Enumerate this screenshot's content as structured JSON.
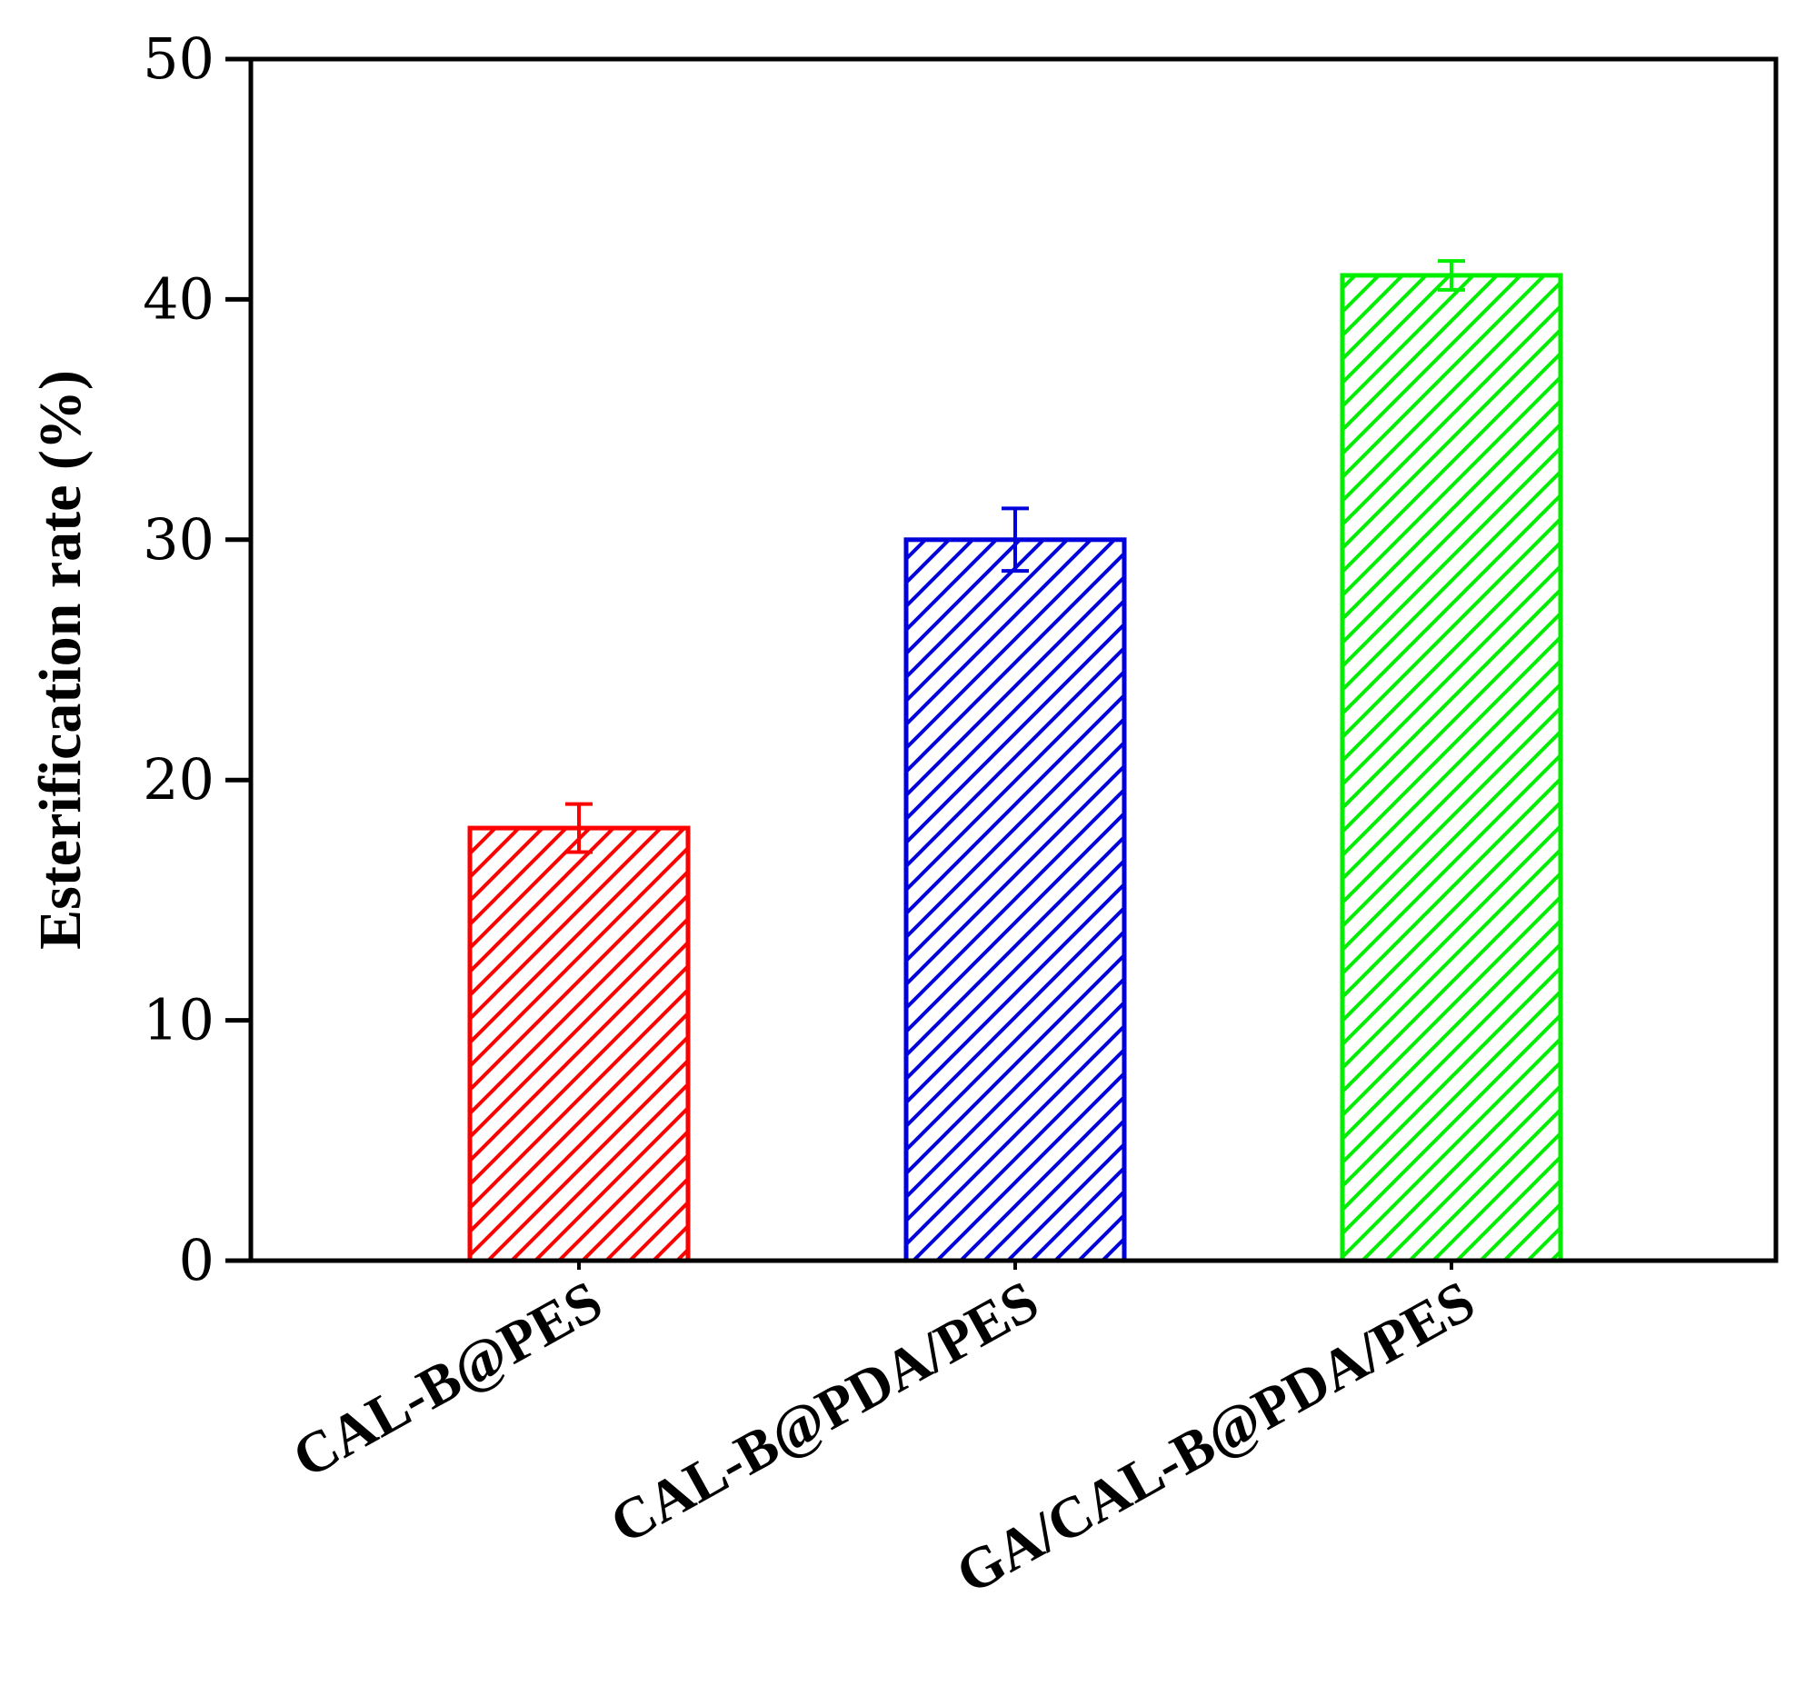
{
  "chart_data": {
    "type": "bar",
    "categories": [
      "CAL-B@PES",
      "CAL-B@PDA/PES",
      "GA/CAL-B@PDA/PES"
    ],
    "values": [
      18,
      30,
      41
    ],
    "errors": [
      1.0,
      1.3,
      0.6
    ],
    "colors": [
      "#ff0000",
      "#0000dd",
      "#00ee00"
    ],
    "fill_pattern": "diagonal-hatch",
    "ylabel": "Esterification rate (%)",
    "xlabel": "",
    "title": "",
    "ylim": [
      0,
      50
    ],
    "yticks": [
      "0",
      "10",
      "20",
      "30",
      "40",
      "50"
    ],
    "grid": false,
    "legend": "none"
  }
}
